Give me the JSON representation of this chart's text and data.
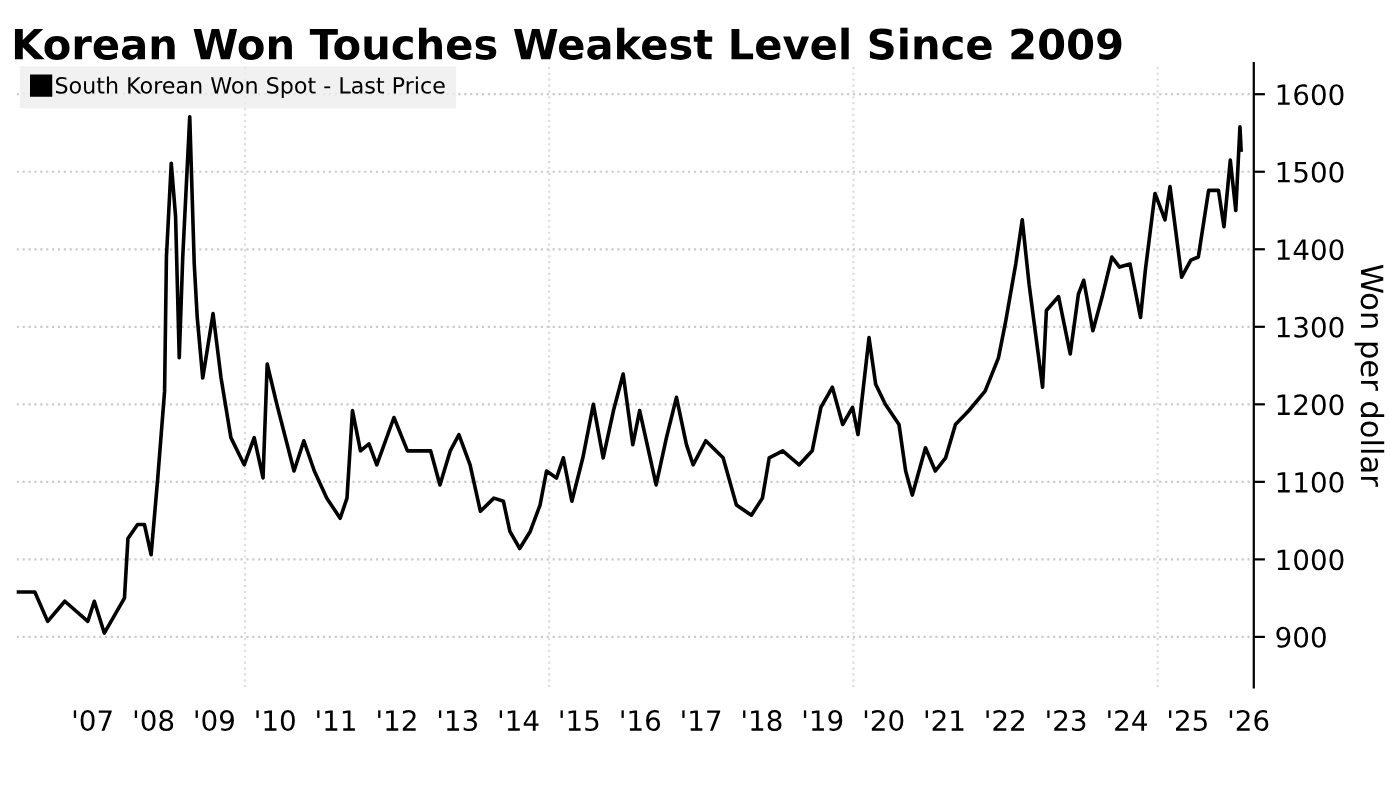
{
  "chart_data": {
    "type": "line",
    "title": "Korean Won Touches Weakest Level Since 2009",
    "ylabel": "Won per dollar",
    "legend": "top left",
    "grid": "y",
    "xlim": [
      "2006-04-01",
      "2026-08-01"
    ],
    "ylim": [
      835,
      1640
    ],
    "xticks": [
      {
        "value": "2007-07-01",
        "label": "'07"
      },
      {
        "value": "2008-07-01",
        "label": "'08"
      },
      {
        "value": "2009-07-01",
        "label": "'09"
      },
      {
        "value": "2010-07-01",
        "label": "'10"
      },
      {
        "value": "2011-07-01",
        "label": "'11"
      },
      {
        "value": "2012-07-01",
        "label": "'12"
      },
      {
        "value": "2013-07-01",
        "label": "'13"
      },
      {
        "value": "2014-07-01",
        "label": "'14"
      },
      {
        "value": "2015-07-01",
        "label": "'15"
      },
      {
        "value": "2016-07-01",
        "label": "'16"
      },
      {
        "value": "2017-07-01",
        "label": "'17"
      },
      {
        "value": "2018-07-01",
        "label": "'18"
      },
      {
        "value": "2019-07-01",
        "label": "'19"
      },
      {
        "value": "2020-07-01",
        "label": "'20"
      },
      {
        "value": "2021-07-01",
        "label": "'21"
      },
      {
        "value": "2022-07-01",
        "label": "'22"
      },
      {
        "value": "2023-07-01",
        "label": "'23"
      },
      {
        "value": "2024-07-01",
        "label": "'24"
      },
      {
        "value": "2025-07-01",
        "label": "'25"
      },
      {
        "value": "2026-07-01",
        "label": "'26"
      }
    ],
    "yticks": [
      900,
      1000,
      1100,
      1200,
      1300,
      1400,
      1500,
      1600
    ],
    "ref_lines": [
      {
        "axis": "x",
        "value": "2010-01-01",
        "color": "#dddddd",
        "line_style": "dotted"
      },
      {
        "axis": "x",
        "value": "2015-01-01",
        "color": "#dddddd",
        "line_style": "dotted"
      },
      {
        "axis": "x",
        "value": "2020-01-01",
        "color": "#dddddd",
        "line_style": "dotted"
      },
      {
        "axis": "x",
        "value": "2025-01-01",
        "color": "#dddddd",
        "line_style": "dotted"
      }
    ],
    "series": [
      {
        "name": "South Korean Won Spot - Last Price",
        "color": "#000000",
        "x": [
          "2006-04-08",
          "2006-07-19",
          "2006-10-04",
          "2007-01-15",
          "2007-06-02",
          "2007-07-11",
          "2007-09-09",
          "2008-01-08",
          "2008-01-29",
          "2008-03-27",
          "2008-05-07",
          "2008-06-16",
          "2008-07-26",
          "2008-09-05",
          "2008-09-16",
          "2008-10-15",
          "2008-11-10",
          "2008-12-02",
          "2008-12-23",
          "2009-02-03",
          "2009-03-02",
          "2009-03-20",
          "2009-04-22",
          "2009-06-23",
          "2009-08-10",
          "2009-10-08",
          "2009-12-27",
          "2010-02-25",
          "2010-04-19",
          "2010-05-14",
          "2010-07-11",
          "2010-10-22",
          "2010-12-20",
          "2011-02-21",
          "2011-05-07",
          "2011-07-26",
          "2011-09-05",
          "2011-10-08",
          "2011-11-25",
          "2012-01-15",
          "2012-03-02",
          "2012-06-13",
          "2012-09-02",
          "2013-01-19",
          "2013-03-16",
          "2013-05-17",
          "2013-07-08",
          "2013-09-13",
          "2013-11-14",
          "2014-02-03",
          "2014-04-01",
          "2014-05-10",
          "2014-07-08",
          "2014-09-09",
          "2014-11-07",
          "2014-12-16",
          "2015-02-14",
          "2015-03-27",
          "2015-05-17",
          "2015-07-22",
          "2015-09-23",
          "2015-11-21",
          "2016-01-22",
          "2016-03-20",
          "2016-05-17",
          "2016-06-27",
          "2016-10-04",
          "2016-12-05",
          "2017-02-03",
          "2017-04-04",
          "2017-05-14",
          "2017-07-29",
          "2017-11-10",
          "2018-01-29",
          "2018-04-29",
          "2018-07-04",
          "2018-08-14",
          "2018-11-03",
          "2019-02-10",
          "2019-04-29",
          "2019-06-20",
          "2019-08-28",
          "2019-10-29",
          "2019-12-27",
          "2020-01-29",
          "2020-04-04",
          "2020-05-14",
          "2020-07-11",
          "2020-10-01",
          "2020-11-10",
          "2020-12-20",
          "2021-03-09",
          "2021-05-07",
          "2021-07-08",
          "2021-09-05",
          "2021-11-25",
          "2022-03-02",
          "2022-05-21",
          "2022-07-01",
          "2022-09-02",
          "2022-10-11",
          "2022-11-21",
          "2023-02-10",
          "2023-03-05",
          "2023-05-17",
          "2023-07-26",
          "2023-09-13",
          "2023-10-15",
          "2023-12-09",
          "2024-02-03",
          "2024-04-01",
          "2024-05-17",
          "2024-07-19",
          "2024-09-20",
          "2024-10-19",
          "2024-12-16",
          "2025-02-14",
          "2025-03-16",
          "2025-05-25",
          "2025-07-19",
          "2025-09-02",
          "2025-11-03",
          "2026-01-01",
          "2026-02-03",
          "2026-03-13",
          "2026-04-15",
          "2026-05-10",
          "2026-05-17"
        ],
        "values": [
          958,
          958,
          920,
          946,
          920,
          946,
          905,
          950,
          1027,
          1045,
          1045,
          1006,
          1105,
          1217,
          1390,
          1511,
          1442,
          1260,
          1390,
          1571,
          1381,
          1312,
          1234,
          1317,
          1234,
          1157,
          1122,
          1157,
          1105,
          1252,
          1200,
          1114,
          1153,
          1114,
          1079,
          1053,
          1079,
          1192,
          1140,
          1149,
          1122,
          1183,
          1140,
          1140,
          1096,
          1140,
          1161,
          1122,
          1062,
          1079,
          1075,
          1036,
          1014,
          1036,
          1070,
          1114,
          1105,
          1131,
          1075,
          1131,
          1200,
          1131,
          1192,
          1239,
          1148,
          1192,
          1096,
          1157,
          1209,
          1148,
          1122,
          1153,
          1131,
          1070,
          1057,
          1079,
          1131,
          1140,
          1122,
          1140,
          1196,
          1222,
          1174,
          1196,
          1161,
          1286,
          1226,
          1200,
          1174,
          1114,
          1083,
          1144,
          1114,
          1131,
          1174,
          1192,
          1217,
          1260,
          1304,
          1381,
          1438,
          1355,
          1222,
          1321,
          1339,
          1265,
          1342,
          1360,
          1295,
          1339,
          1390,
          1377,
          1381,
          1312,
          1373,
          1472,
          1438,
          1481,
          1364,
          1386,
          1390,
          1476,
          1476,
          1429,
          1515,
          1450,
          1558,
          1528
        ]
      }
    ]
  }
}
